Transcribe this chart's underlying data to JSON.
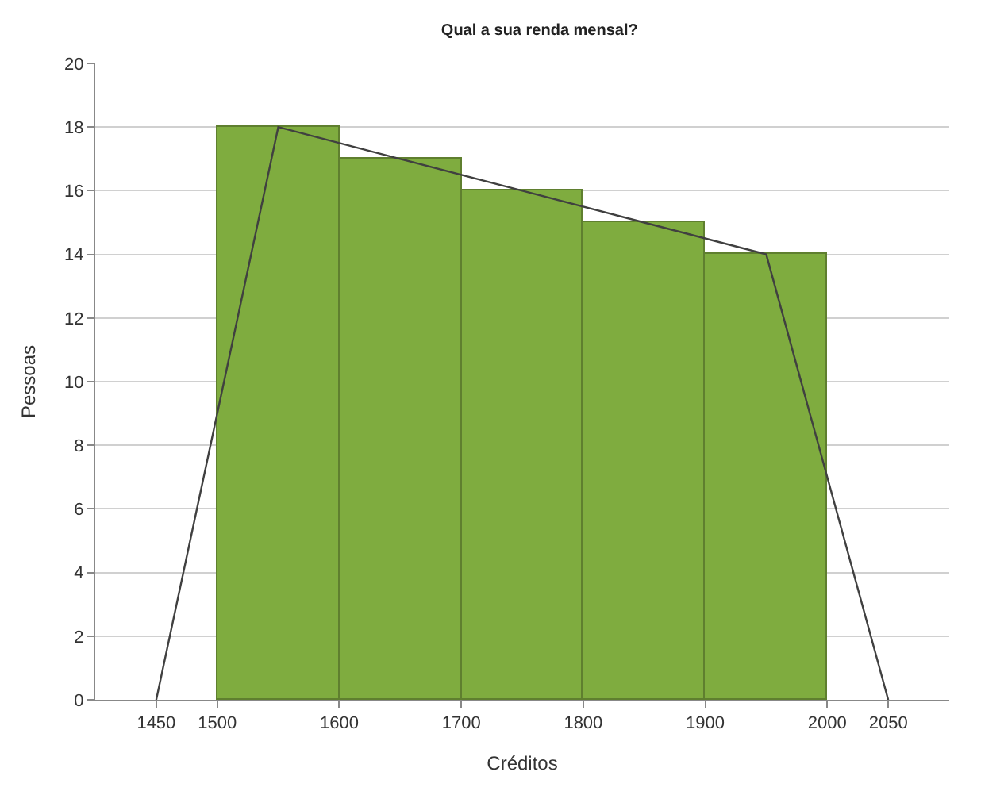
{
  "chart_data": {
    "type": "histogram",
    "title": "Qual a sua renda mensal?",
    "xlabel": "Créditos",
    "ylabel": "Pessoas",
    "bins": [
      1500,
      1600,
      1700,
      1800,
      1900,
      2000
    ],
    "values": [
      18,
      17,
      16,
      15,
      14
    ],
    "color": "#7fac3f",
    "series": [
      {
        "type": "line",
        "color": "#404040",
        "x": [
          1450,
          1550,
          1650,
          1750,
          1850,
          1950,
          2050
        ],
        "values": [
          0,
          18,
          17,
          16,
          15,
          14,
          0
        ]
      }
    ],
    "xlim": [
      1400,
      2100
    ],
    "xticks": [
      1450,
      1500,
      1600,
      1700,
      1800,
      1900,
      2000,
      2050
    ],
    "ylim": [
      0,
      20
    ],
    "yticks": [
      0,
      2,
      4,
      6,
      8,
      10,
      12,
      14,
      16,
      18,
      20
    ],
    "grid": "y",
    "marker": "none",
    "line_style": "solid"
  }
}
